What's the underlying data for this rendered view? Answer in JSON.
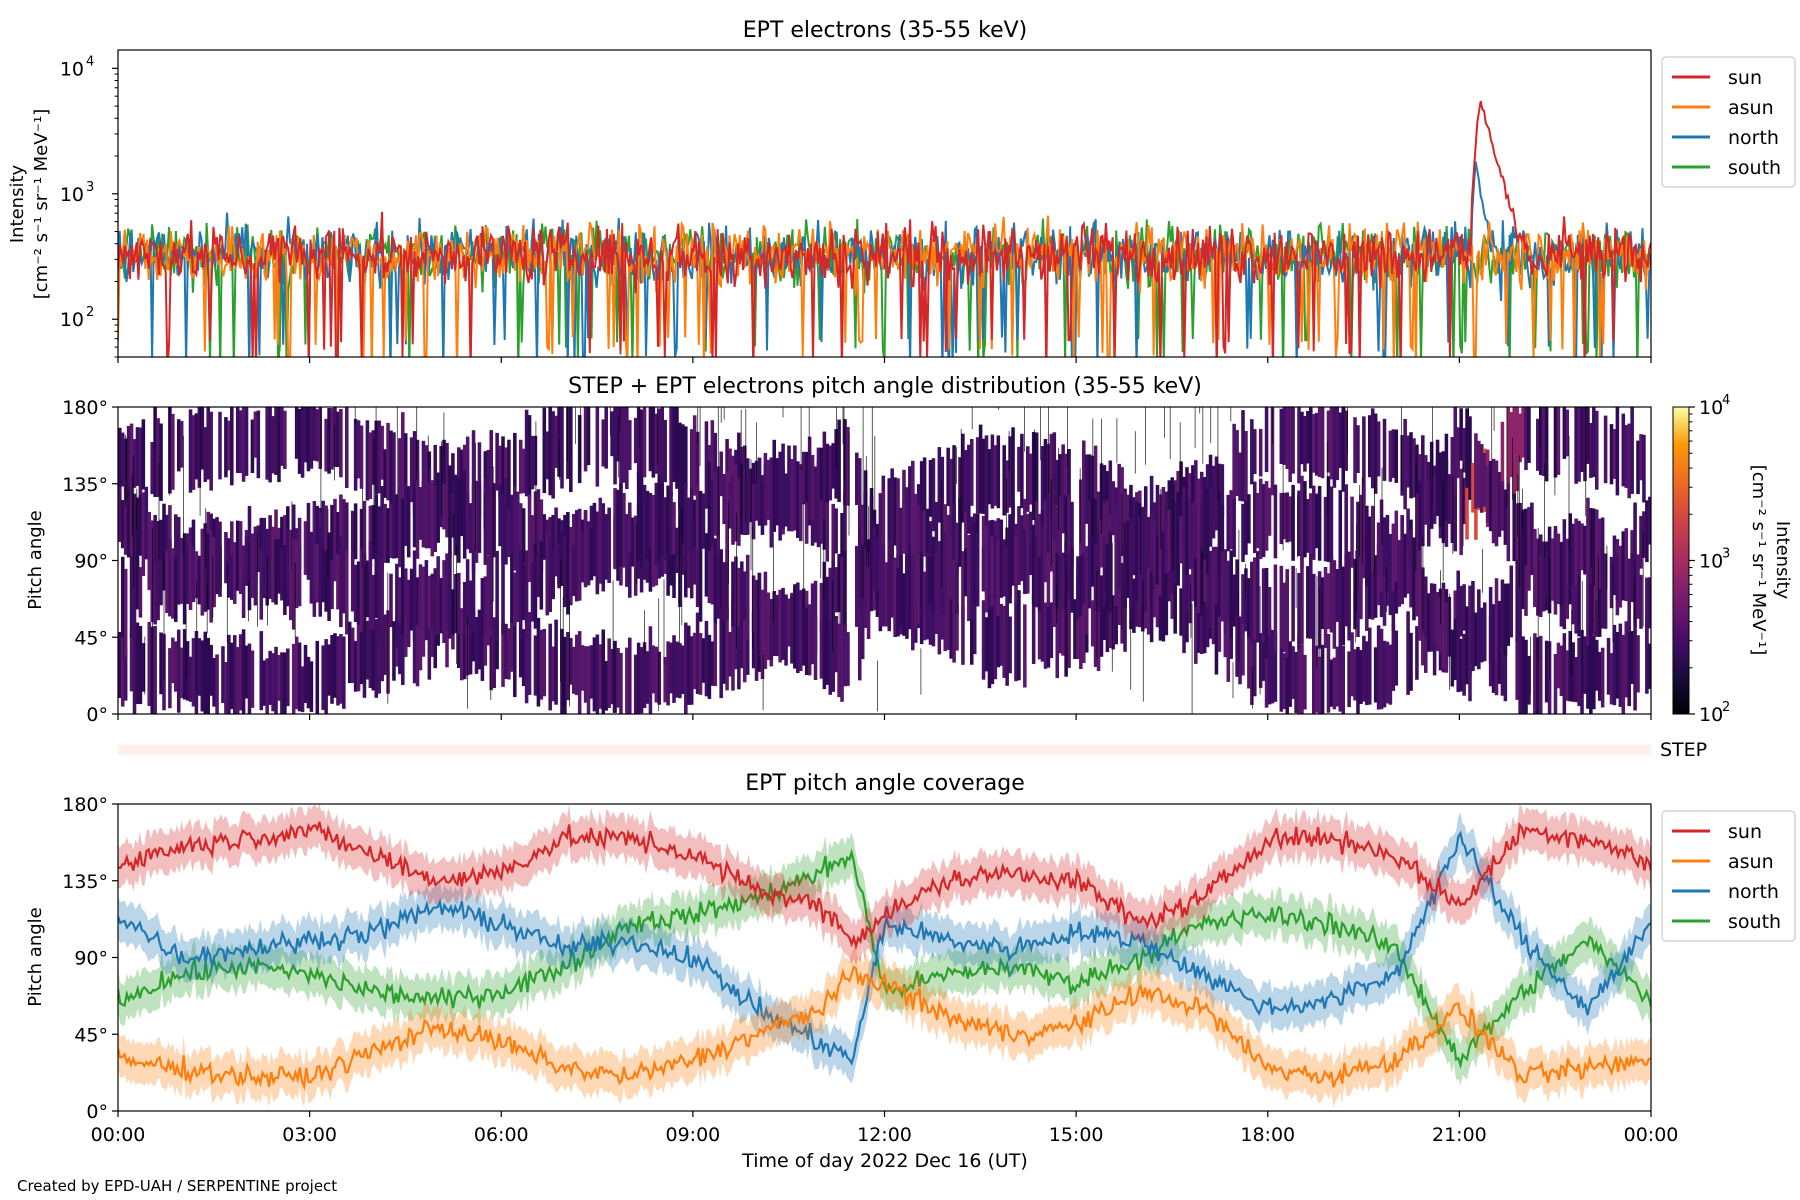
{
  "footer": "Created by EPD-UAH / SERPENTINE project",
  "colors": {
    "sun": "#d62728",
    "asun": "#ff7f0e",
    "north": "#1f77b4",
    "south": "#2ca02c",
    "step_band": "#fff0ec"
  },
  "chart_data": [
    {
      "id": "intensity",
      "type": "line",
      "title": "EPT electrons (35-55 keV)",
      "ylabel_1": "Intensity",
      "ylabel_2": "[cm⁻² s⁻¹ sr⁻¹ MeV⁻¹]",
      "yscale": "log",
      "ylim": [
        50,
        14000
      ],
      "ytick_base": "10",
      "yticks": [
        {
          "v": 100,
          "exp": "2"
        },
        {
          "v": 1000,
          "exp": "3"
        },
        {
          "v": 10000,
          "exp": "4"
        }
      ],
      "xlim_hours": [
        0,
        24
      ],
      "legend": {
        "placement": "outside-right-top",
        "entries": [
          "sun",
          "asun",
          "north",
          "south"
        ]
      },
      "series_baseline": {
        "name": "all",
        "typical": 330,
        "range": [
          60,
          750
        ]
      },
      "event": {
        "series": "sun",
        "onset_time": "21:10",
        "peak_time": "21:20",
        "peak_value": 5000,
        "decay_time": "22:00"
      },
      "event_north": {
        "peak_time": "21:15",
        "peak_value": 2000
      }
    },
    {
      "id": "pad",
      "type": "heatmap",
      "title": "STEP + EPT electrons pitch angle distribution (35-55 keV)",
      "ylabel": "Pitch angle",
      "yticks": [
        "0°",
        "45°",
        "90°",
        "135°",
        "180°"
      ],
      "ylim": [
        0,
        180
      ],
      "colorbar": {
        "label_1": "Intensity",
        "label_2": "[cm⁻² s⁻¹ sr⁻¹ MeV⁻¹]",
        "scale": "log",
        "range": [
          100,
          10000
        ],
        "tick_base": "10",
        "ticks": [
          {
            "v": 100,
            "exp": "2"
          },
          {
            "v": 1000,
            "exp": "3"
          },
          {
            "v": 10000,
            "exp": "4"
          }
        ],
        "colormap": "inferno"
      },
      "step_label": "STEP"
    },
    {
      "id": "coverage",
      "type": "line",
      "title": "EPT pitch angle coverage",
      "ylabel": "Pitch angle",
      "yticks": [
        "0°",
        "45°",
        "90°",
        "135°",
        "180°"
      ],
      "ylim": [
        0,
        180
      ],
      "xlabel": "Time of day 2022 Dec 16 (UT)",
      "xticks": [
        "00:00",
        "03:00",
        "06:00",
        "09:00",
        "12:00",
        "15:00",
        "18:00",
        "21:00",
        "00:00"
      ],
      "legend": {
        "placement": "outside-right-top",
        "entries": [
          "sun",
          "asun",
          "north",
          "south"
        ]
      },
      "series": [
        {
          "name": "sun",
          "x_hours": [
            0,
            1,
            2,
            3,
            4,
            5,
            6,
            7,
            8,
            9,
            10,
            11,
            11.5,
            12,
            13,
            14,
            15,
            16,
            17,
            18,
            19,
            20,
            21,
            22,
            23,
            24
          ],
          "values": [
            145,
            155,
            160,
            165,
            150,
            135,
            140,
            160,
            160,
            150,
            130,
            120,
            100,
            115,
            135,
            140,
            135,
            110,
            125,
            160,
            160,
            150,
            120,
            165,
            160,
            145
          ]
        },
        {
          "name": "asun",
          "x_hours": [
            0,
            1,
            2,
            3,
            4,
            5,
            6,
            7,
            8,
            9,
            10,
            11,
            11.5,
            12,
            13,
            14,
            15,
            16,
            17,
            18,
            19,
            20,
            21,
            22,
            23,
            24
          ],
          "values": [
            30,
            25,
            20,
            20,
            35,
            50,
            40,
            25,
            20,
            30,
            45,
            60,
            80,
            75,
            55,
            45,
            50,
            70,
            60,
            25,
            20,
            30,
            60,
            20,
            25,
            30
          ]
        },
        {
          "name": "north",
          "x_hours": [
            0,
            1,
            2,
            3,
            4,
            5,
            6,
            7,
            8,
            9,
            10,
            11,
            11.5,
            12,
            13,
            14,
            15,
            16,
            17,
            18,
            19,
            20,
            21,
            22,
            23,
            24
          ],
          "values": [
            115,
            90,
            95,
            100,
            105,
            120,
            110,
            95,
            100,
            90,
            60,
            40,
            30,
            110,
            100,
            95,
            105,
            100,
            80,
            60,
            65,
            80,
            160,
            100,
            60,
            110
          ]
        },
        {
          "name": "south",
          "x_hours": [
            0,
            1,
            2,
            3,
            4,
            5,
            6,
            7,
            8,
            9,
            10,
            11,
            11.5,
            12,
            13,
            14,
            15,
            16,
            17,
            18,
            19,
            20,
            21,
            22,
            23,
            24
          ],
          "values": [
            65,
            80,
            85,
            80,
            70,
            65,
            70,
            85,
            110,
            115,
            125,
            140,
            150,
            70,
            80,
            85,
            75,
            90,
            110,
            115,
            110,
            95,
            30,
            70,
            100,
            65
          ]
        }
      ]
    }
  ]
}
